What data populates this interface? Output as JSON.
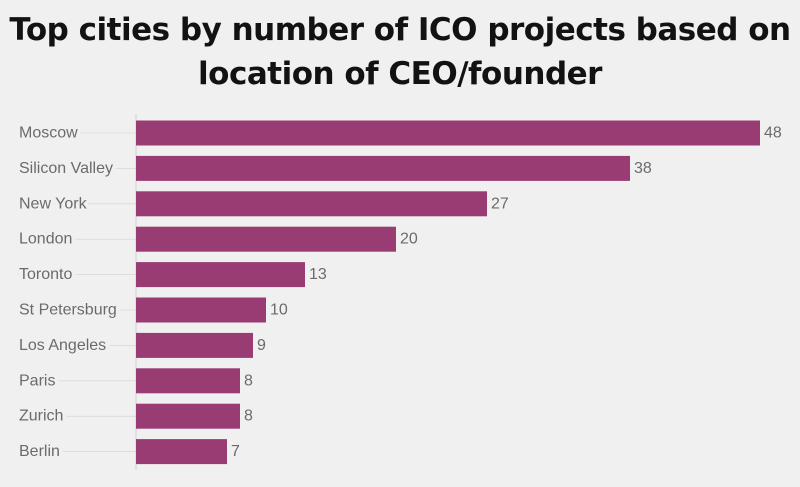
{
  "title": "Top cities by number of ICO projects based on location of CEO/founder",
  "colors": {
    "bar": "#993c74",
    "background": "#f0f0f0",
    "axis": "#cfcfcf",
    "label": "#6b6b6b",
    "title": "#121212"
  },
  "chart_data": {
    "type": "bar",
    "orientation": "horizontal",
    "title": "Top cities by number of ICO projects based on location of CEO/founder",
    "xlabel": "",
    "ylabel": "",
    "categories": [
      "Moscow",
      "Silicon Valley",
      "New York",
      "London",
      "Toronto",
      "St Petersburg",
      "Los Angeles",
      "Paris",
      "Zurich",
      "Berlin"
    ],
    "values": [
      48,
      38,
      27,
      20,
      13,
      10,
      9,
      8,
      8,
      7
    ],
    "xlim": [
      0,
      48
    ],
    "grid": false,
    "legend": "none",
    "data_labels": true
  }
}
